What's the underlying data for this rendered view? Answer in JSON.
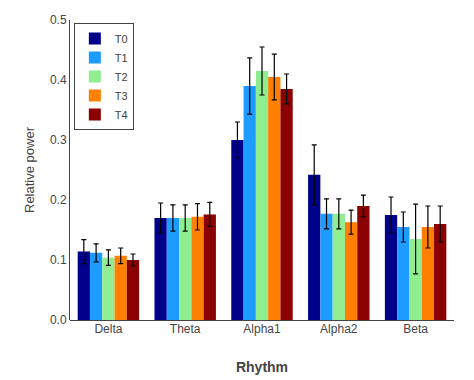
{
  "chart_data": {
    "type": "bar",
    "categories": [
      "Delta",
      "Theta",
      "Alpha1",
      "Alpha2",
      "Beta"
    ],
    "series": [
      {
        "name": "T0",
        "color": "#00008B",
        "values": [
          0.114,
          0.17,
          0.3,
          0.242,
          0.175
        ],
        "errors": [
          0.02,
          0.025,
          0.03,
          0.05,
          0.03
        ]
      },
      {
        "name": "T1",
        "color": "#1E9BFF",
        "values": [
          0.112,
          0.17,
          0.39,
          0.177,
          0.155
        ],
        "errors": [
          0.015,
          0.022,
          0.047,
          0.025,
          0.025
        ]
      },
      {
        "name": "T2",
        "color": "#90EE90",
        "values": [
          0.104,
          0.17,
          0.415,
          0.177,
          0.135
        ],
        "errors": [
          0.013,
          0.022,
          0.04,
          0.025,
          0.058
        ]
      },
      {
        "name": "T3",
        "color": "#FF8000",
        "values": [
          0.107,
          0.172,
          0.405,
          0.163,
          0.155
        ],
        "errors": [
          0.013,
          0.022,
          0.038,
          0.02,
          0.035
        ]
      },
      {
        "name": "T4",
        "color": "#8B0000",
        "values": [
          0.1,
          0.176,
          0.385,
          0.19,
          0.16
        ],
        "errors": [
          0.01,
          0.02,
          0.025,
          0.018,
          0.03
        ]
      }
    ],
    "xlabel": "Rhythm",
    "ylabel": "Relative power",
    "ylim": [
      0,
      0.5
    ],
    "yticks": [
      {
        "value": 0,
        "label": "0.0"
      },
      0.1,
      0.2,
      0.3,
      0.4,
      0.5
    ],
    "grid": false,
    "legend": "upper left"
  }
}
